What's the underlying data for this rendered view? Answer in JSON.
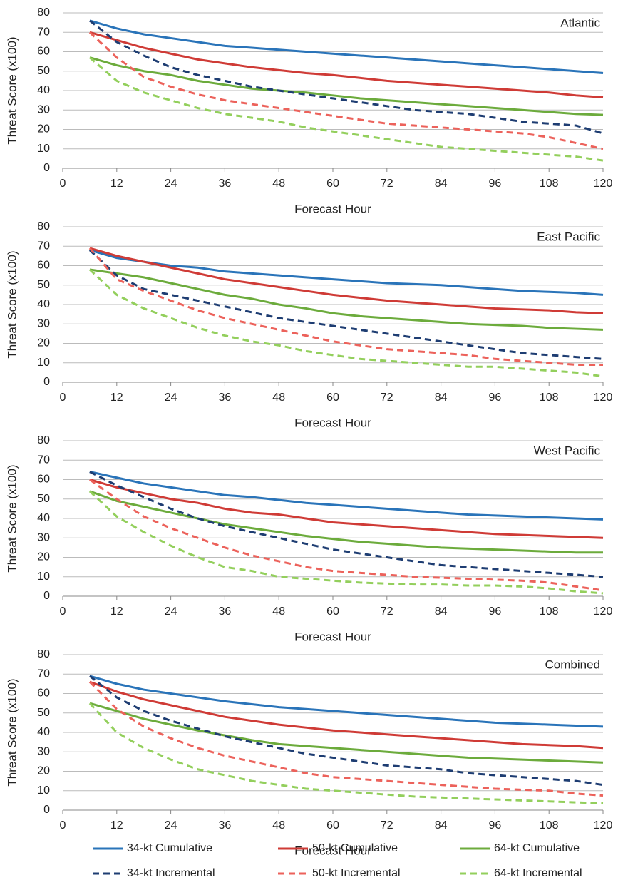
{
  "chart_data": [
    {
      "type": "line",
      "title": "Atlantic",
      "xlabel": "Forecast Hour",
      "ylabel": "Threat Score (x100)",
      "x": [
        6,
        12,
        18,
        24,
        30,
        36,
        42,
        48,
        54,
        60,
        66,
        72,
        78,
        84,
        90,
        96,
        102,
        108,
        114,
        120
      ],
      "xlim": [
        0,
        120
      ],
      "xticks": [
        0,
        12,
        24,
        36,
        48,
        60,
        72,
        84,
        96,
        108,
        120
      ],
      "ylim": [
        0,
        80
      ],
      "yticks": [
        0,
        10,
        20,
        30,
        40,
        50,
        60,
        70,
        80
      ],
      "grid": true,
      "series": [
        {
          "values": [
            76,
            72,
            69,
            67,
            65,
            63,
            62,
            61,
            60,
            59,
            58,
            57,
            56,
            55,
            54,
            53,
            52,
            51,
            50,
            49
          ]
        },
        {
          "values": [
            70,
            66,
            62,
            59,
            56,
            54,
            52,
            50.5,
            49,
            48,
            46.5,
            45,
            44,
            43,
            42,
            41,
            40,
            39,
            37.5,
            36.5
          ]
        },
        {
          "values": [
            57,
            53,
            50,
            48,
            45,
            43,
            41,
            40,
            39,
            37.5,
            36,
            35,
            34,
            33,
            32,
            31,
            30,
            29,
            28,
            27.5
          ]
        },
        {
          "values": [
            76,
            65,
            58,
            52,
            48,
            45,
            42,
            40,
            38,
            36,
            34,
            32,
            30,
            29,
            28,
            26,
            24,
            23,
            22,
            18
          ]
        },
        {
          "values": [
            70,
            57,
            47,
            42,
            38,
            35,
            33,
            31,
            29,
            27,
            25,
            23,
            22,
            21,
            20,
            19,
            18,
            16,
            13,
            10
          ]
        },
        {
          "values": [
            57,
            45,
            39,
            35,
            31,
            28,
            26,
            24,
            21,
            19,
            17,
            15,
            13,
            11,
            10,
            9,
            8,
            7,
            6,
            4
          ]
        }
      ]
    },
    {
      "type": "line",
      "title": "East Pacific",
      "xlabel": "Forecast Hour",
      "ylabel": "Threat Score (x100)",
      "x": [
        6,
        12,
        18,
        24,
        30,
        36,
        42,
        48,
        54,
        60,
        66,
        72,
        78,
        84,
        90,
        96,
        102,
        108,
        114,
        120
      ],
      "xlim": [
        0,
        120
      ],
      "xticks": [
        0,
        12,
        24,
        36,
        48,
        60,
        72,
        84,
        96,
        108,
        120
      ],
      "ylim": [
        0,
        80
      ],
      "yticks": [
        0,
        10,
        20,
        30,
        40,
        50,
        60,
        70,
        80
      ],
      "grid": true,
      "series": [
        {
          "values": [
            68,
            64,
            62,
            60,
            59,
            57,
            56,
            55,
            54,
            53,
            52,
            51,
            50.5,
            50,
            49,
            48,
            47,
            46.5,
            46,
            45
          ]
        },
        {
          "values": [
            69,
            65,
            62,
            59,
            56,
            53,
            51,
            49,
            47,
            45,
            43.5,
            42,
            41,
            40,
            39,
            38,
            37.5,
            37,
            36,
            35.5
          ]
        },
        {
          "values": [
            58,
            56,
            54,
            51,
            48,
            45,
            43,
            40,
            38,
            35.5,
            34,
            33,
            32,
            31,
            30,
            29.5,
            29,
            28,
            27.5,
            27
          ]
        },
        {
          "values": [
            68,
            55,
            48,
            45,
            42,
            39,
            36,
            33,
            31,
            29,
            27,
            25,
            23,
            21,
            19,
            17,
            15,
            14,
            13,
            12
          ]
        },
        {
          "values": [
            69,
            53,
            47,
            42,
            37,
            33,
            30,
            27,
            24,
            21,
            19,
            17,
            16,
            15,
            14,
            12,
            11,
            10,
            9,
            9
          ]
        },
        {
          "values": [
            58,
            45,
            38,
            33,
            28,
            24,
            21,
            19,
            16,
            14,
            12,
            11,
            10,
            9,
            8,
            8,
            7,
            6,
            5,
            3
          ]
        }
      ]
    },
    {
      "type": "line",
      "title": "West Pacific",
      "xlabel": "Forecast Hour",
      "ylabel": "Threat Score (x100)",
      "x": [
        6,
        12,
        18,
        24,
        30,
        36,
        42,
        48,
        54,
        60,
        66,
        72,
        78,
        84,
        90,
        96,
        102,
        108,
        114,
        120
      ],
      "xlim": [
        0,
        120
      ],
      "xticks": [
        0,
        12,
        24,
        36,
        48,
        60,
        72,
        84,
        96,
        108,
        120
      ],
      "ylim": [
        0,
        80
      ],
      "yticks": [
        0,
        10,
        20,
        30,
        40,
        50,
        60,
        70,
        80
      ],
      "grid": true,
      "series": [
        {
          "values": [
            64,
            61,
            58,
            56,
            54,
            52,
            51,
            49.5,
            48,
            47,
            46,
            45,
            44,
            43,
            42,
            41.5,
            41,
            40.5,
            40,
            39.5
          ]
        },
        {
          "values": [
            60,
            56,
            53,
            50,
            48,
            45,
            43,
            42,
            40,
            38,
            37,
            36,
            35,
            34,
            33,
            32,
            31.5,
            31,
            30.5,
            30
          ]
        },
        {
          "values": [
            54,
            49,
            46,
            43,
            40,
            37,
            35,
            33,
            31,
            29.5,
            28,
            27,
            26,
            25,
            24.5,
            24,
            23.5,
            23,
            22.5,
            22.5
          ]
        },
        {
          "values": [
            64,
            57,
            51,
            45,
            40,
            36,
            33,
            30,
            27,
            24,
            22,
            20,
            18,
            16,
            15,
            14,
            13,
            12,
            11,
            10
          ]
        },
        {
          "values": [
            60,
            50,
            41,
            35,
            30,
            25,
            21,
            18,
            15,
            13,
            12,
            11,
            10,
            9.5,
            9,
            8.5,
            8,
            7,
            5,
            3
          ]
        },
        {
          "values": [
            54,
            41,
            33,
            26,
            20,
            15,
            13,
            10,
            9,
            8,
            7,
            6.5,
            6,
            6,
            5.5,
            5.5,
            5,
            4,
            2.5,
            1.5
          ]
        }
      ]
    },
    {
      "type": "line",
      "title": "Combined",
      "xlabel": "Forecast Hour",
      "ylabel": "Threat Score (x100)",
      "x": [
        6,
        12,
        18,
        24,
        30,
        36,
        42,
        48,
        54,
        60,
        66,
        72,
        78,
        84,
        90,
        96,
        102,
        108,
        114,
        120
      ],
      "xlim": [
        0,
        120
      ],
      "xticks": [
        0,
        12,
        24,
        36,
        48,
        60,
        72,
        84,
        96,
        108,
        120
      ],
      "ylim": [
        0,
        80
      ],
      "yticks": [
        0,
        10,
        20,
        30,
        40,
        50,
        60,
        70,
        80
      ],
      "grid": true,
      "series": [
        {
          "values": [
            69,
            65,
            62,
            60,
            58,
            56,
            54.5,
            53,
            52,
            51,
            50,
            49,
            48,
            47,
            46,
            45,
            44.5,
            44,
            43.5,
            43
          ]
        },
        {
          "values": [
            66,
            61,
            57,
            54,
            51,
            48,
            46,
            44,
            42.5,
            41,
            40,
            39,
            38,
            37,
            36,
            35,
            34,
            33.5,
            33,
            32
          ]
        },
        {
          "values": [
            55,
            51,
            47,
            44,
            41,
            38.5,
            36,
            34,
            33,
            32,
            31,
            30,
            29,
            28,
            27,
            26.5,
            26,
            25.5,
            25,
            24.5
          ]
        },
        {
          "values": [
            69,
            58,
            51,
            46,
            42,
            38,
            35,
            32,
            29,
            27,
            25,
            23,
            22,
            21,
            19,
            18,
            17,
            16,
            15,
            13
          ]
        },
        {
          "values": [
            66,
            52,
            43,
            37,
            32,
            28,
            25,
            22,
            19,
            17,
            16,
            15,
            14,
            13,
            12,
            11,
            10.5,
            10,
            8.5,
            7.5
          ]
        },
        {
          "values": [
            55,
            40,
            32,
            26,
            21,
            18,
            15,
            13,
            11,
            10,
            9,
            8,
            7,
            6.5,
            6,
            5.5,
            5,
            4.5,
            4,
            3.5
          ]
        }
      ]
    }
  ],
  "legend": [
    {
      "name": "34-kt Cumulative",
      "color": "#2a74b9",
      "dashed": false
    },
    {
      "name": "50-kt Cumulative",
      "color": "#cf3b36",
      "dashed": false
    },
    {
      "name": "64-kt Cumulative",
      "color": "#6cab3c",
      "dashed": false
    },
    {
      "name": "34-kt Incremental",
      "color": "#1e3d72",
      "dashed": true
    },
    {
      "name": "50-kt Incremental",
      "color": "#ec625b",
      "dashed": true
    },
    {
      "name": "64-kt Incremental",
      "color": "#93cf5c",
      "dashed": true
    }
  ]
}
